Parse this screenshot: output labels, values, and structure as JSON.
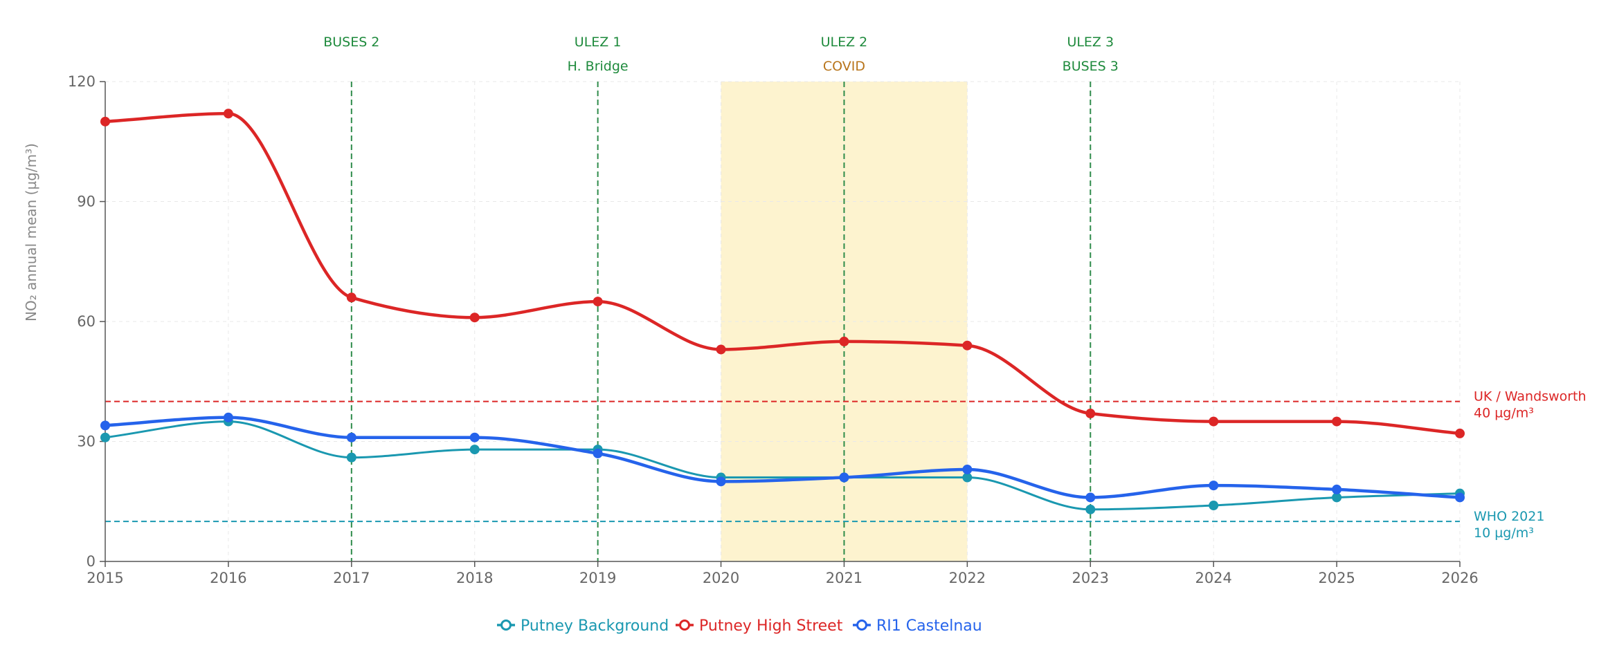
{
  "chart_data": {
    "type": "line",
    "xlabel": "",
    "ylabel": "NO₂ annual mean (µg/m³)",
    "xlim": [
      2015,
      2026
    ],
    "ylim": [
      0,
      120
    ],
    "x_ticks": [
      "2015",
      "2016",
      "2017",
      "2018",
      "2019",
      "2020",
      "2021",
      "2022",
      "2023",
      "2024",
      "2025",
      "2026"
    ],
    "y_ticks": [
      "0",
      "30",
      "60",
      "90",
      "120"
    ],
    "grid": true,
    "legend_position": "bottom-center",
    "series": [
      {
        "name": "Putney Background",
        "color": "#1a98b0",
        "x": [
          2015,
          2016,
          2017,
          2018,
          2019,
          2020,
          2021,
          2022,
          2023,
          2024,
          2025,
          2026
        ],
        "values": [
          31,
          35,
          26,
          28,
          28,
          21,
          21,
          21,
          13,
          14,
          16,
          17
        ]
      },
      {
        "name": "Putney High Street",
        "color": "#dc2626",
        "x": [
          2015,
          2016,
          2017,
          2018,
          2019,
          2020,
          2021,
          2022,
          2023,
          2024,
          2025,
          2026
        ],
        "values": [
          110,
          112,
          66,
          61,
          65,
          53,
          55,
          54,
          37,
          35,
          35,
          32
        ]
      },
      {
        "name": "RI1 Castelnau",
        "color": "#2563eb",
        "x": [
          2015,
          2016,
          2017,
          2018,
          2019,
          2020,
          2021,
          2022,
          2023,
          2024,
          2025,
          2026
        ],
        "values": [
          34,
          36,
          31,
          31,
          27,
          20,
          21,
          23,
          16,
          19,
          18,
          16
        ]
      }
    ],
    "reference_lines": [
      {
        "value": 40,
        "label_line1": "UK / Wandsworth",
        "label_line2": "40 µg/m³",
        "color": "#dc2626"
      },
      {
        "value": 10,
        "label_line1": "WHO 2021",
        "label_line2": "10 µg/m³",
        "color": "#1a98b0"
      }
    ],
    "events": [
      {
        "x": 2017,
        "labels": [
          {
            "text": "BUSES 2",
            "color": "#1e8a3c"
          }
        ]
      },
      {
        "x": 2019,
        "labels": [
          {
            "text": "ULEZ 1",
            "color": "#1e8a3c"
          },
          {
            "text": "H. Bridge",
            "color": "#1e8a3c"
          }
        ]
      },
      {
        "x": 2021,
        "labels": [
          {
            "text": "ULEZ 2",
            "color": "#1e8a3c"
          },
          {
            "text": "COVID",
            "color": "#b8741a"
          }
        ]
      },
      {
        "x": 2023,
        "labels": [
          {
            "text": "ULEZ 3",
            "color": "#1e8a3c"
          },
          {
            "text": "BUSES 3",
            "color": "#1e8a3c"
          }
        ]
      }
    ],
    "shaded_period": {
      "start": 2020,
      "end": 2022,
      "color": "#fdf3cf"
    }
  }
}
